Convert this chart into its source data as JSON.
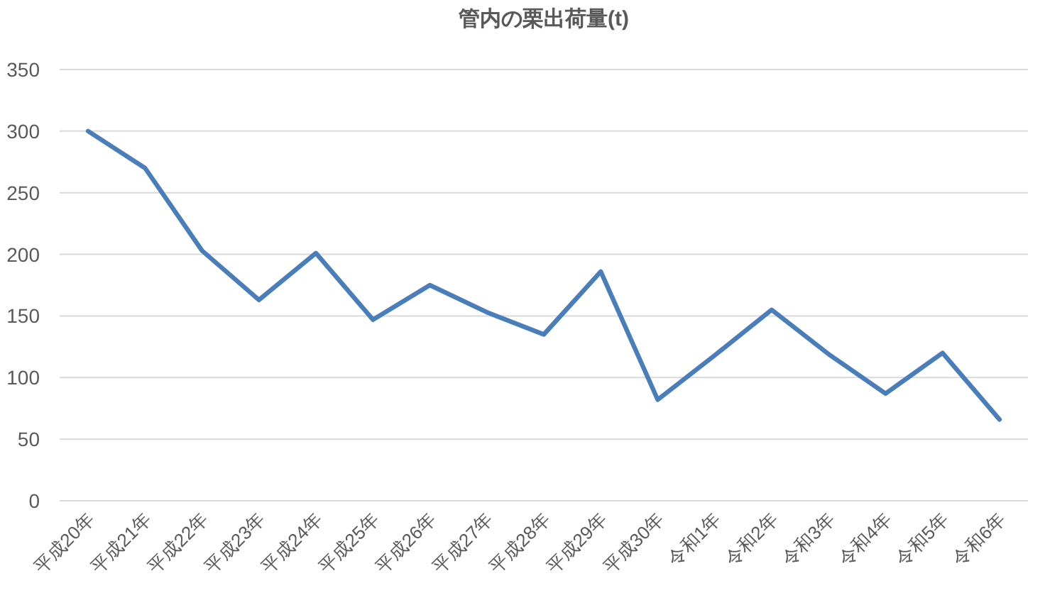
{
  "chart_data": {
    "type": "line",
    "title": "管内の栗出荷量(t)",
    "categories": [
      "平成20年",
      "平成21年",
      "平成22年",
      "平成23年",
      "平成24年",
      "平成25年",
      "平成26年",
      "平成27年",
      "平成28年",
      "平成29年",
      "平成30年",
      "令和1年",
      "令和2年",
      "令和3年",
      "令和4年",
      "令和5年",
      "令和6年"
    ],
    "series": [
      {
        "color": "#4a7ebb",
        "values": [
          300,
          270,
          203,
          163,
          201,
          147,
          175,
          153,
          135,
          186,
          82,
          118,
          155,
          119,
          87,
          120,
          66
        ]
      }
    ],
    "ylim": [
      0,
      350
    ],
    "yticks": [
      0,
      50,
      100,
      150,
      200,
      250,
      300,
      350
    ],
    "grid": "y",
    "marker": "none",
    "line_style": "solid"
  }
}
